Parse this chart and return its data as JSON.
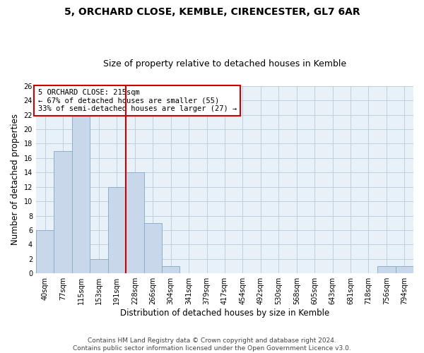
{
  "title1": "5, ORCHARD CLOSE, KEMBLE, CIRENCESTER, GL7 6AR",
  "title2": "Size of property relative to detached houses in Kemble",
  "xlabel": "Distribution of detached houses by size in Kemble",
  "ylabel": "Number of detached properties",
  "bar_labels": [
    "40sqm",
    "77sqm",
    "115sqm",
    "153sqm",
    "191sqm",
    "228sqm",
    "266sqm",
    "304sqm",
    "341sqm",
    "379sqm",
    "417sqm",
    "454sqm",
    "492sqm",
    "530sqm",
    "568sqm",
    "605sqm",
    "643sqm",
    "681sqm",
    "718sqm",
    "756sqm",
    "794sqm"
  ],
  "bar_values": [
    6,
    17,
    22,
    2,
    12,
    14,
    7,
    1,
    0,
    0,
    0,
    0,
    0,
    0,
    0,
    0,
    0,
    0,
    0,
    1,
    1
  ],
  "bar_color": "#c8d8ea",
  "bar_edge_color": "#8ab0cc",
  "vline_color": "#cc0000",
  "annotation_text": "5 ORCHARD CLOSE: 215sqm\n← 67% of detached houses are smaller (55)\n33% of semi-detached houses are larger (27) →",
  "annotation_box_color": "#cc0000",
  "ylim_max": 26,
  "yticks": [
    0,
    2,
    4,
    6,
    8,
    10,
    12,
    14,
    16,
    18,
    20,
    22,
    24,
    26
  ],
  "grid_color": "#c0d0e0",
  "bg_color": "#e8f0f8",
  "footer": "Contains HM Land Registry data © Crown copyright and database right 2024.\nContains public sector information licensed under the Open Government Licence v3.0.",
  "title1_fontsize": 10,
  "title2_fontsize": 9,
  "xlabel_fontsize": 8.5,
  "ylabel_fontsize": 8.5,
  "tick_fontsize": 7,
  "annotation_fontsize": 7.5,
  "footer_fontsize": 6.5
}
